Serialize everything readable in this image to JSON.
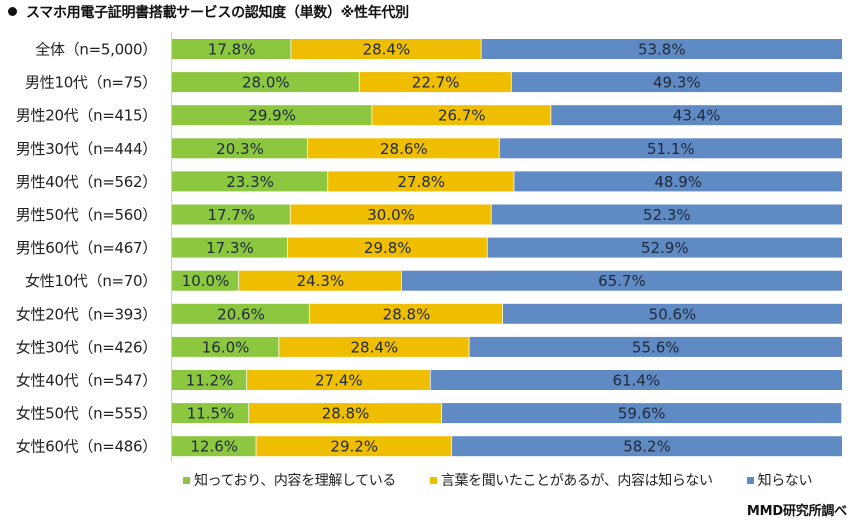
{
  "title": "スマホ用電子証明書搭載サービスの認知度（単数）※性年代別",
  "source": "MMD研究所調べ",
  "chart_data": {
    "type": "bar",
    "orientation": "horizontal",
    "stacked": true,
    "percent_stacked": true,
    "title": "スマホ用電子証明書搭載サービスの認知度（単数）※性年代別",
    "xlabel": "",
    "ylabel": "",
    "xlim": [
      0,
      100
    ],
    "grid": false,
    "legend_position": "bottom",
    "value_suffix": "%",
    "categories": [
      "全体（n=5,000）",
      "男性10代（n=75）",
      "男性20代（n=415）",
      "男性30代（n=444）",
      "男性40代（n=562）",
      "男性50代（n=560）",
      "男性60代（n=467）",
      "女性10代（n=70）",
      "女性20代（n=393）",
      "女性30代（n=426）",
      "女性40代（n=547）",
      "女性50代（n=555）",
      "女性60代（n=486）"
    ],
    "series": [
      {
        "name": "知っており、内容を理解している",
        "color": "#8DC63F",
        "values": [
          17.8,
          28.0,
          29.9,
          20.3,
          23.3,
          17.7,
          17.3,
          10.0,
          20.6,
          16.0,
          11.2,
          11.5,
          12.6
        ]
      },
      {
        "name": "言葉を聞いたことがあるが、内容は知らない",
        "color": "#F0BE00",
        "values": [
          28.4,
          22.7,
          26.7,
          28.6,
          27.8,
          30.0,
          29.8,
          24.3,
          28.8,
          28.4,
          27.4,
          28.8,
          29.2
        ]
      },
      {
        "name": "知らない",
        "color": "#5F8AC4",
        "values": [
          53.8,
          49.3,
          43.4,
          51.1,
          48.9,
          52.3,
          52.9,
          65.7,
          50.6,
          55.6,
          61.4,
          59.6,
          58.2
        ]
      }
    ]
  }
}
